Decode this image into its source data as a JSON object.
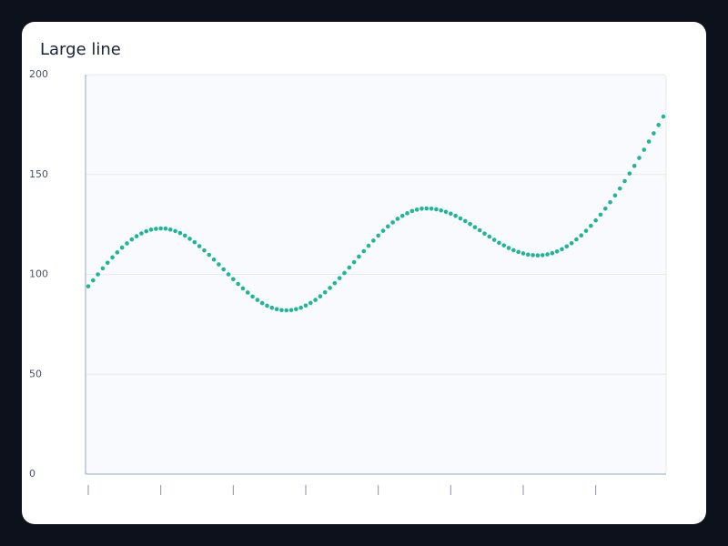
{
  "chart_data": {
    "type": "line",
    "title": "Large line",
    "values": [
      94.0,
      97.0,
      100.0,
      103.0,
      105.8,
      108.5,
      111.0,
      113.4,
      115.5,
      117.5,
      119.1,
      120.5,
      121.6,
      122.4,
      122.8,
      123.0,
      122.9,
      122.4,
      121.7,
      120.7,
      119.4,
      117.8,
      116.1,
      114.1,
      112.0,
      109.8,
      107.4,
      105.0,
      102.5,
      100.0,
      97.6,
      95.2,
      93.0,
      90.9,
      88.9,
      87.2,
      85.6,
      84.3,
      83.3,
      82.6,
      82.1,
      82.0,
      82.1,
      82.6,
      83.3,
      84.4,
      85.7,
      87.2,
      89.0,
      91.0,
      93.2,
      95.6,
      98.1,
      100.7,
      103.4,
      106.1,
      108.9,
      111.6,
      114.3,
      116.9,
      119.4,
      121.8,
      124.0,
      126.0,
      127.8,
      129.3,
      130.6,
      131.7,
      132.4,
      132.9,
      133.0,
      132.9,
      132.6,
      132.0,
      131.3,
      130.4,
      129.3,
      128.0,
      126.7,
      125.2,
      123.6,
      122.1,
      120.4,
      118.9,
      117.3,
      115.8,
      114.5,
      113.2,
      112.1,
      111.2,
      110.5,
      109.9,
      109.6,
      109.5,
      109.6,
      110.0,
      110.6,
      111.5,
      112.6,
      114.0,
      115.6,
      117.5,
      119.5,
      121.8,
      124.3,
      127.0,
      129.9,
      132.9,
      136.1,
      139.5,
      143.0,
      146.7,
      150.5,
      154.3,
      158.3,
      162.4,
      166.5,
      170.6,
      174.8,
      179.0
    ],
    "color": "#1fb598",
    "xlim": [
      0,
      119
    ],
    "xticks": [
      0,
      15,
      30,
      45,
      60,
      75,
      90,
      105
    ],
    "ylim": [
      0,
      200
    ],
    "yticks": [
      0,
      50,
      100,
      150,
      200
    ],
    "grid": true
  }
}
